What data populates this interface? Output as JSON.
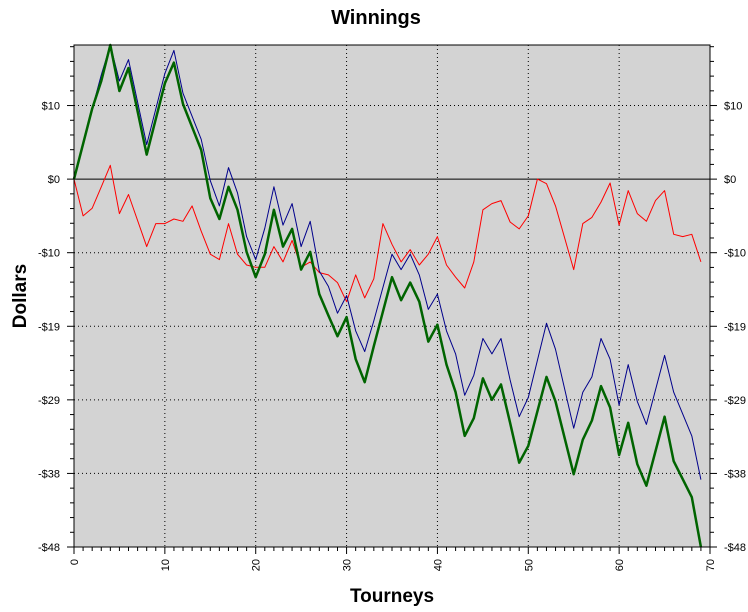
{
  "chart_data": {
    "type": "line",
    "title": "Winnings",
    "xlabel": "Tourneys",
    "ylabel": "Dollars",
    "xlim": [
      0,
      70
    ],
    "ylim": [
      -48,
      17.5
    ],
    "x_ticks": [
      0,
      10,
      20,
      30,
      40,
      50,
      60,
      70
    ],
    "y_ticks": [
      {
        "value": 9.6,
        "label": "$10"
      },
      {
        "value": 0,
        "label": "$0"
      },
      {
        "value": -9.6,
        "label": "-$10"
      },
      {
        "value": -19.2,
        "label": "-$19"
      },
      {
        "value": -28.8,
        "label": "-$29"
      },
      {
        "value": -38.4,
        "label": "-$38"
      },
      {
        "value": -48,
        "label": "-$48"
      }
    ],
    "grid": true,
    "reference_line_y": 0,
    "colors": {
      "plot_background": "#d3d3d3",
      "green_series": "#006400",
      "blue_series": "#00008b",
      "red_series": "#ff0000"
    },
    "series": [
      {
        "color": "#00008b",
        "x": [
          0,
          2,
          3,
          4,
          5,
          6,
          8,
          10,
          11,
          12,
          14,
          15,
          16,
          17,
          18,
          19,
          20,
          21,
          22,
          23,
          24,
          25,
          26,
          27,
          28,
          29,
          30,
          31,
          32,
          33,
          35,
          36,
          37,
          38,
          39,
          40,
          41,
          42,
          43,
          44,
          45,
          46,
          47,
          48,
          49,
          50,
          52,
          53,
          55,
          56,
          57,
          58,
          59,
          60,
          61,
          62,
          63,
          65,
          66,
          68,
          69
        ],
        "y": [
          0,
          9.2,
          13.6,
          17.5,
          12.8,
          15.6,
          4.5,
          13.8,
          16.8,
          11.2,
          5.2,
          -0.2,
          -3.5,
          1.5,
          -1.8,
          -7.5,
          -10.5,
          -6.4,
          -1,
          -6,
          -3.2,
          -8.8,
          -5.5,
          -12,
          -14,
          -17.5,
          -15.2,
          -19.8,
          -22.5,
          -18.5,
          -9.8,
          -11.8,
          -9.8,
          -12.5,
          -17,
          -15,
          -19.8,
          -22.8,
          -28.2,
          -25.6,
          -20.8,
          -22.8,
          -20.8,
          -26.2,
          -31,
          -28.5,
          -18.8,
          -22.2,
          -32.5,
          -27.8,
          -25.8,
          -20.8,
          -23.5,
          -29.5,
          -24.2,
          -29,
          -32,
          -23,
          -27.8,
          -33.5,
          -39.2
        ]
      },
      {
        "color": "#ff0000",
        "x": [
          0,
          1,
          2,
          3,
          4,
          5,
          6,
          8,
          9,
          10,
          11,
          12,
          13,
          14,
          15,
          16,
          17,
          18,
          19,
          20,
          21,
          22,
          23,
          24,
          25,
          26,
          27,
          28,
          29,
          30,
          31,
          32,
          33,
          34,
          35,
          36,
          37,
          38,
          39,
          40,
          41,
          42,
          43,
          44,
          45,
          46,
          47,
          48,
          49,
          50,
          51,
          52,
          53,
          55,
          56,
          57,
          58,
          59,
          60,
          61,
          62,
          63,
          64,
          65,
          66,
          67,
          68,
          69
        ],
        "y": [
          0,
          -4.8,
          -3.8,
          -1,
          1.8,
          -4.5,
          -2,
          -8.8,
          -5.8,
          -5.8,
          -5.2,
          -5.5,
          -3.5,
          -6.8,
          -9.8,
          -10.5,
          -5.8,
          -9.8,
          -11.2,
          -11.5,
          -11.5,
          -8.8,
          -10.8,
          -8,
          -11.5,
          -10.8,
          -12.2,
          -12.5,
          -13.5,
          -16,
          -12.5,
          -15.5,
          -13,
          -5.8,
          -8.5,
          -10.8,
          -9.2,
          -11.2,
          -9.8,
          -7.5,
          -11.2,
          -12.8,
          -14.2,
          -10.8,
          -4,
          -3.2,
          -2.8,
          -5.6,
          -6.5,
          -4.8,
          0,
          -0.6,
          -3.5,
          -11.8,
          -5.8,
          -5,
          -3,
          -0.5,
          -6,
          -1.5,
          -4.5,
          -5.5,
          -2.8,
          -1.5,
          -7.2,
          -7.5,
          -7.2,
          -10.8
        ]
      },
      {
        "color": "#006400",
        "x": [
          0,
          2,
          3,
          4,
          5,
          6,
          8,
          10,
          11,
          12,
          14,
          15,
          16,
          17,
          18,
          19,
          20,
          21,
          22,
          23,
          24,
          25,
          26,
          27,
          28,
          29,
          30,
          31,
          32,
          33,
          35,
          36,
          37,
          38,
          39,
          40,
          41,
          42,
          43,
          44,
          45,
          46,
          47,
          48,
          49,
          50,
          52,
          53,
          55,
          56,
          57,
          58,
          59,
          60,
          61,
          62,
          63,
          65,
          66,
          68,
          69
        ],
        "y": [
          0,
          9.2,
          12.8,
          17.5,
          11.5,
          14.5,
          3.2,
          12.5,
          15.2,
          9.8,
          3.8,
          -2.5,
          -5.2,
          -1,
          -4,
          -9.5,
          -12.8,
          -9.8,
          -4,
          -8.8,
          -6.5,
          -11.8,
          -9.5,
          -15,
          -17.8,
          -20.5,
          -18,
          -23.5,
          -26.5,
          -21.8,
          -12.8,
          -15.8,
          -13.5,
          -16,
          -21.2,
          -19,
          -24.2,
          -27.8,
          -33.5,
          -31.2,
          -26,
          -28.8,
          -26.8,
          -31.8,
          -37,
          -34.8,
          -25.8,
          -29,
          -38.5,
          -34,
          -31.5,
          -27,
          -29.8,
          -36,
          -31.8,
          -37.2,
          -40,
          -31,
          -36.8,
          -41.5,
          -48
        ]
      }
    ]
  }
}
